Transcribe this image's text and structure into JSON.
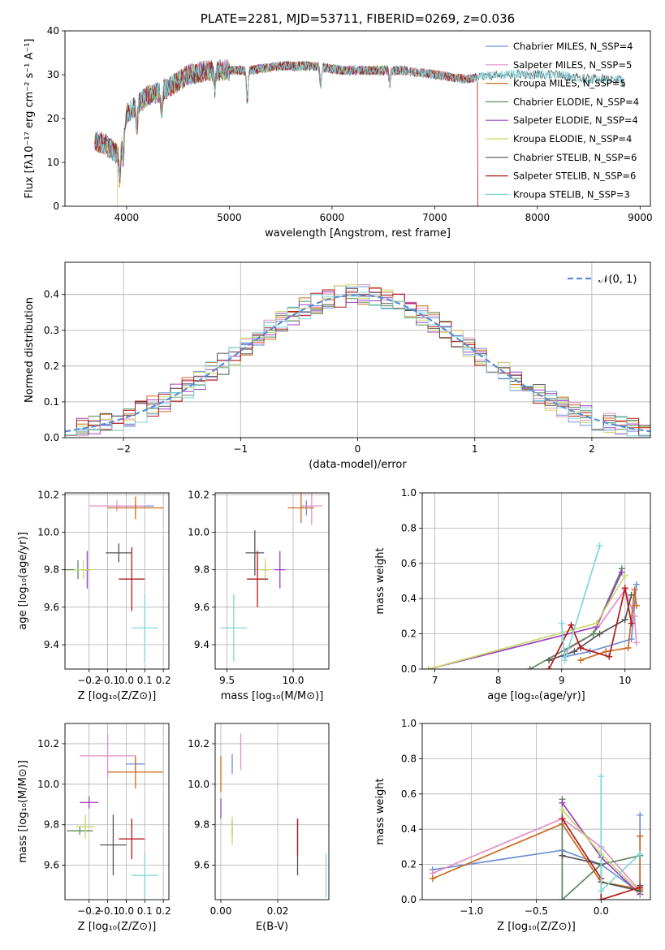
{
  "chart_data": [
    {
      "id": "spectrum",
      "type": "line",
      "title": "PLATE=2281, MJD=53711, FIBERID=0269, z=0.036",
      "xlabel": "wavelength [Angstrom, rest frame]",
      "ylabel": "Flux [fλ10⁻¹⁷ erg cm⁻² s⁻¹ A⁻¹]",
      "xlim": [
        3400,
        9100
      ],
      "ylim": [
        0,
        40
      ],
      "xticks": [
        4000,
        5000,
        6000,
        7000,
        8000,
        9000
      ],
      "yticks": [
        0,
        10,
        20,
        30,
        40
      ],
      "grid": false,
      "legend_position": "top-right",
      "continuum": {
        "x": [
          3690,
          3800,
          3900,
          3950,
          4000,
          4100,
          4200,
          4300,
          4400,
          4600,
          4800,
          5000,
          5200,
          5500,
          5800,
          6100,
          6400,
          6700,
          7000,
          7300,
          7600,
          7900,
          8200,
          8500,
          8800,
          8850
        ],
        "y": [
          15,
          14,
          12,
          15,
          21,
          23,
          25,
          26,
          27,
          30,
          31,
          31,
          31,
          32,
          32,
          31,
          31,
          31,
          30,
          29,
          30,
          30,
          30,
          29,
          29,
          28
        ]
      },
      "dips": [
        [
          3933,
          8
        ],
        [
          3968,
          6
        ],
        [
          4101,
          5
        ],
        [
          4340,
          5
        ],
        [
          4861,
          4
        ],
        [
          5175,
          7
        ],
        [
          5890,
          4
        ],
        [
          6563,
          3
        ]
      ],
      "series": [
        {
          "name": "Chabrier MILES, N_SSP=4",
          "color": "#6d8fd6",
          "xmax": 7400
        },
        {
          "name": "Salpeter MILES, N_SSP=5",
          "color": "#e48fc6",
          "xmax": 7400
        },
        {
          "name": "Kroupa MILES, N_SSP=5",
          "color": "#cc6b1e",
          "xmax": 7400,
          "drop_at": 7420
        },
        {
          "name": "Chabrier ELODIE, N_SSP=4",
          "color": "#5c8a5c",
          "xmax": 6790
        },
        {
          "name": "Salpeter ELODIE, N_SSP=4",
          "color": "#9c3fc0",
          "xmax": 6790
        },
        {
          "name": "Kroupa ELODIE, N_SSP=4",
          "color": "#c8d96a",
          "xmax": 6790,
          "drop_at": 3910
        },
        {
          "name": "Chabrier STELIB, N_SSP=6",
          "color": "#555555",
          "xmax": 8850
        },
        {
          "name": "Salpeter STELIB, N_SSP=6",
          "color": "#b11c1c",
          "xmax": 7400,
          "drop_at": 7420
        },
        {
          "name": "Kroupa STELIB, N_SSP=3",
          "color": "#7fd6dc",
          "xmax": 8850
        }
      ]
    },
    {
      "id": "residuals",
      "type": "step",
      "xlabel": "(data-model)/error",
      "ylabel": "Normed distribution",
      "xlim": [
        -2.5,
        2.5
      ],
      "ylim": [
        0,
        0.49
      ],
      "xticks": [
        -2,
        -1,
        0,
        1,
        2
      ],
      "xticklabels": [
        "−2",
        "−1",
        "0",
        "1",
        "2"
      ],
      "yticks": [
        0.0,
        0.1,
        0.2,
        0.3,
        0.4
      ],
      "grid": true,
      "legend_position": "top-right",
      "gaussian_label": "𝒩(0, 1)",
      "gaussian_color": "#5b8bd6",
      "bin_width": 0.1
    },
    {
      "id": "age-vs-Z",
      "type": "errorbar",
      "xlabel": "Z [log₁₀(Z/Z⊙)]",
      "ylabel": "age  [log₁₀(age/yr)]",
      "xlim": [
        -0.33,
        0.23
      ],
      "ylim": [
        9.27,
        10.21
      ],
      "xticks": [
        -0.2,
        -0.1,
        0.0,
        0.1,
        0.2
      ],
      "xticklabels": [
        "−0.2",
        "−0.1",
        "0.0",
        "0.1",
        "0.2"
      ],
      "yticks": [
        9.4,
        9.6,
        9.8,
        10.0,
        10.2
      ],
      "yticklabels": [
        "9.4",
        "9.6",
        "9.8",
        "10.0",
        "10.2"
      ],
      "grid": true,
      "points": [
        {
          "x": 0.05,
          "xerr": 0.1,
          "y": 10.14,
          "yerr": 0.01,
          "color": "#6d8fd6"
        },
        {
          "x": -0.05,
          "xerr": 0.15,
          "y": 10.14,
          "yerr": 0.03,
          "color": "#e48fc6"
        },
        {
          "x": 0.05,
          "xerr": 0.15,
          "y": 10.13,
          "yerr": 0.06,
          "color": "#cc6b1e"
        },
        {
          "x": -0.26,
          "xerr": 0.07,
          "y": 9.8,
          "yerr": 0.05,
          "color": "#5c8a5c"
        },
        {
          "x": -0.21,
          "xerr": 0.01,
          "y": 9.8,
          "yerr": 0.1,
          "color": "#9c3fc0"
        },
        {
          "x": -0.23,
          "xerr": 0.05,
          "y": 9.8,
          "yerr": 0.05,
          "color": "#c8d96a"
        },
        {
          "x": -0.04,
          "xerr": 0.07,
          "y": 9.89,
          "yerr": 0.05,
          "color": "#555555"
        },
        {
          "x": 0.03,
          "xerr": 0.07,
          "y": 9.75,
          "yerr": 0.17,
          "color": "#b11c1c"
        },
        {
          "x": 0.1,
          "xerr": 0.07,
          "y": 9.49,
          "yerr": 0.18,
          "color": "#7fd6dc"
        }
      ]
    },
    {
      "id": "age-vs-mass",
      "type": "errorbar",
      "xlabel": "mass [log₁₀(M/M⊙)]",
      "xlim": [
        9.41,
        10.27
      ],
      "ylim": [
        9.27,
        10.21
      ],
      "xticks": [
        9.5,
        10.0
      ],
      "xticklabels": [
        "9.5",
        "10.0"
      ],
      "yticks": [
        9.4,
        9.6,
        9.8,
        10.0,
        10.2
      ],
      "yticklabels": [
        "9.4",
        "9.6",
        "9.8",
        "10.0",
        "10.2"
      ],
      "grid": true,
      "points": [
        {
          "x": 10.1,
          "xerr": 0.05,
          "y": 10.13,
          "yerr": 0.04,
          "color": "#6d8fd6"
        },
        {
          "x": 10.14,
          "xerr": 0.08,
          "y": 10.14,
          "yerr": 0.1,
          "color": "#e48fc6"
        },
        {
          "x": 10.06,
          "xerr": 0.1,
          "y": 10.13,
          "yerr": 0.08,
          "color": "#cc6b1e"
        },
        {
          "x": 9.79,
          "xerr": 0.02,
          "y": 9.8,
          "yerr": 0.04,
          "color": "#5c8a5c"
        },
        {
          "x": 9.9,
          "xerr": 0.04,
          "y": 9.8,
          "yerr": 0.1,
          "color": "#9c3fc0"
        },
        {
          "x": 9.79,
          "xerr": 0.04,
          "y": 9.8,
          "yerr": 0.06,
          "color": "#c8d96a"
        },
        {
          "x": 9.71,
          "xerr": 0.07,
          "y": 9.89,
          "yerr": 0.12,
          "color": "#555555"
        },
        {
          "x": 9.73,
          "xerr": 0.08,
          "y": 9.75,
          "yerr": 0.15,
          "color": "#b11c1c"
        },
        {
          "x": 9.55,
          "xerr": 0.1,
          "y": 9.49,
          "yerr": 0.18,
          "color": "#7fd6dc"
        }
      ]
    },
    {
      "id": "massweight-vs-age",
      "type": "line",
      "xlabel": "age  [log₁₀(age/yr)]",
      "ylabel": "mass weight",
      "xlim": [
        6.8,
        10.4
      ],
      "ylim": [
        0,
        1
      ],
      "xticks": [
        7,
        8,
        9,
        10
      ],
      "xticklabels": [
        "7",
        "8",
        "9",
        "10"
      ],
      "yticks": [
        0.0,
        0.2,
        0.4,
        0.6,
        0.8,
        1.0
      ],
      "yticklabels": [
        "0.0",
        "0.2",
        "0.4",
        "0.6",
        "0.8",
        "1.0"
      ],
      "grid": true,
      "series": [
        {
          "color": "#6d8fd6",
          "x": [
            9.05,
            9.45,
            10.1,
            10.18
          ],
          "y": [
            0.07,
            0.1,
            0.17,
            0.48
          ]
        },
        {
          "color": "#e48fc6",
          "x": [
            9.05,
            9.5,
            10.0,
            10.15,
            10.18
          ],
          "y": [
            0.1,
            0.2,
            0.45,
            0.3,
            0.15
          ]
        },
        {
          "color": "#cc6b1e",
          "x": [
            9.3,
            9.7,
            10.05,
            10.15,
            10.18
          ],
          "y": [
            0.05,
            0.1,
            0.12,
            0.45,
            0.36
          ]
        },
        {
          "color": "#5c8a5c",
          "x": [
            8.5,
            9.5,
            9.95
          ],
          "y": [
            0.0,
            0.2,
            0.57
          ]
        },
        {
          "color": "#9c3fc0",
          "x": [
            6.9,
            9.55,
            9.95
          ],
          "y": [
            0.0,
            0.24,
            0.55
          ]
        },
        {
          "color": "#c8d96a",
          "x": [
            6.9,
            9.55,
            10.0
          ],
          "y": [
            0.0,
            0.26,
            0.53
          ]
        },
        {
          "color": "#555555",
          "x": [
            8.8,
            9.2,
            9.6,
            10.0,
            10.1
          ],
          "y": [
            0.05,
            0.1,
            0.2,
            0.28,
            0.42
          ]
        },
        {
          "color": "#b11c1c",
          "x": [
            8.8,
            9.15,
            9.3,
            9.75,
            10.0,
            10.1
          ],
          "y": [
            0.0,
            0.25,
            0.12,
            0.07,
            0.46,
            0.26
          ]
        },
        {
          "color": "#7fd6dc",
          "x": [
            9.0,
            9.05,
            9.6
          ],
          "y": [
            0.26,
            0.05,
            0.7
          ]
        }
      ]
    },
    {
      "id": "mass-vs-Z",
      "type": "errorbar",
      "xlabel": "Z [log₁₀(Z/Z⊙)]",
      "ylabel": "mass [log₁₀(M/M⊙)]",
      "xlim": [
        -0.33,
        0.23
      ],
      "ylim": [
        9.43,
        10.3
      ],
      "xticks": [
        -0.2,
        -0.1,
        0.0,
        0.1,
        0.2
      ],
      "xticklabels": [
        "−0.2",
        "−0.1",
        "0.0",
        "0.1",
        "0.2"
      ],
      "yticks": [
        9.6,
        9.8,
        10.0,
        10.2
      ],
      "yticklabels": [
        "9.6",
        "9.8",
        "10.0",
        "10.2"
      ],
      "grid": true,
      "points": [
        {
          "x": 0.05,
          "xerr": 0.05,
          "y": 10.1,
          "yerr": 0.04,
          "color": "#6d8fd6"
        },
        {
          "x": -0.1,
          "xerr": 0.15,
          "y": 10.14,
          "yerr": 0.11,
          "color": "#e48fc6"
        },
        {
          "x": 0.05,
          "xerr": 0.15,
          "y": 10.06,
          "yerr": 0.08,
          "color": "#cc6b1e"
        },
        {
          "x": -0.25,
          "xerr": 0.07,
          "y": 9.77,
          "yerr": 0.02,
          "color": "#5c8a5c"
        },
        {
          "x": -0.2,
          "xerr": 0.05,
          "y": 9.91,
          "yerr": 0.03,
          "color": "#9c3fc0"
        },
        {
          "x": -0.22,
          "xerr": 0.05,
          "y": 9.79,
          "yerr": 0.06,
          "color": "#c8d96a"
        },
        {
          "x": -0.07,
          "xerr": 0.07,
          "y": 9.7,
          "yerr": 0.15,
          "color": "#555555"
        },
        {
          "x": 0.03,
          "xerr": 0.07,
          "y": 9.73,
          "yerr": 0.1,
          "color": "#b11c1c"
        },
        {
          "x": 0.1,
          "xerr": 0.07,
          "y": 9.55,
          "yerr": 0.11,
          "color": "#7fd6dc"
        }
      ]
    },
    {
      "id": "mass-vs-ebv",
      "type": "errorbar",
      "xlabel": "E(B-V)",
      "xlim": [
        -0.002,
        0.038
      ],
      "ylim": [
        9.43,
        10.3
      ],
      "xticks": [
        0.0,
        0.02
      ],
      "xticklabels": [
        "0.00",
        "0.02"
      ],
      "yticks": [
        9.6,
        9.8,
        10.0,
        10.2
      ],
      "yticklabels": [
        "9.6",
        "9.8",
        "10.0",
        "10.2"
      ],
      "grid": true,
      "points": [
        {
          "x": 0.004,
          "xerr": 0,
          "y": 10.1,
          "yerr": 0.05,
          "color": "#6d8fd6"
        },
        {
          "x": 0.007,
          "xerr": 0,
          "y": 10.16,
          "yerr": 0.09,
          "color": "#e48fc6"
        },
        {
          "x": 0.0,
          "xerr": 0,
          "y": 10.05,
          "yerr": 0.09,
          "color": "#cc6b1e"
        },
        {
          "x": 0.004,
          "xerr": 0,
          "y": 9.78,
          "yerr": 0.04,
          "color": "#5c8a5c"
        },
        {
          "x": 0.0,
          "xerr": 0,
          "y": 9.88,
          "yerr": 0.05,
          "color": "#9c3fc0"
        },
        {
          "x": 0.004,
          "xerr": 0,
          "y": 9.77,
          "yerr": 0.07,
          "color": "#c8d96a"
        },
        {
          "x": 0.027,
          "xerr": 0,
          "y": 9.69,
          "yerr": 0.14,
          "color": "#555555"
        },
        {
          "x": 0.027,
          "xerr": 0,
          "y": 9.74,
          "yerr": 0.09,
          "color": "#b11c1c"
        },
        {
          "x": 0.037,
          "xerr": 0,
          "y": 9.55,
          "yerr": 0.11,
          "color": "#7fd6dc"
        }
      ]
    },
    {
      "id": "massweight-vs-Z",
      "type": "line",
      "xlabel": "Z [log₁₀(Z/Z⊙)]",
      "ylabel": "mass weight",
      "xlim": [
        -1.38,
        0.38
      ],
      "ylim": [
        0,
        1
      ],
      "xticks": [
        -1.0,
        -0.5,
        0.0
      ],
      "xticklabels": [
        "−1.0",
        "−0.5",
        "0.0"
      ],
      "yticks": [
        0.0,
        0.2,
        0.4,
        0.6,
        0.8,
        1.0
      ],
      "yticklabels": [
        "0.0",
        "0.2",
        "0.4",
        "0.6",
        "0.8",
        "1.0"
      ],
      "grid": true,
      "series": [
        {
          "color": "#6d8fd6",
          "x": [
            -1.3,
            -0.3,
            0.0,
            0.3,
            0.3
          ],
          "y": [
            0.17,
            0.28,
            0.2,
            0.04,
            0.48
          ]
        },
        {
          "color": "#e48fc6",
          "x": [
            -1.3,
            -0.3,
            0.0,
            0.3
          ],
          "y": [
            0.15,
            0.46,
            0.3,
            0.05
          ]
        },
        {
          "color": "#cc6b1e",
          "x": [
            -1.3,
            -0.3,
            0.0,
            0.3,
            0.3
          ],
          "y": [
            0.12,
            0.43,
            0.1,
            0.06,
            0.36
          ]
        },
        {
          "color": "#5c8a5c",
          "x": [
            -0.3,
            -0.3,
            0.0,
            0.3
          ],
          "y": [
            0.57,
            0.0,
            0.2,
            0.25
          ]
        },
        {
          "color": "#9c3fc0",
          "x": [
            -0.3,
            0.0,
            0.3
          ],
          "y": [
            0.55,
            0.24,
            0.03
          ]
        },
        {
          "color": "#c8d96a",
          "x": [
            -0.3,
            0.0,
            0.3
          ],
          "y": [
            0.51,
            0.26,
            0.04
          ]
        },
        {
          "color": "#555555",
          "x": [
            -0.3,
            0.0,
            0.0,
            0.3,
            0.3
          ],
          "y": [
            0.25,
            0.2,
            0.1,
            0.05,
            0.08
          ]
        },
        {
          "color": "#b11c1c",
          "x": [
            -0.3,
            0.0,
            0.0,
            0.3
          ],
          "y": [
            0.46,
            0.12,
            0.0,
            0.07
          ]
        },
        {
          "color": "#7fd6dc",
          "x": [
            0.0,
            0.0,
            0.3
          ],
          "y": [
            0.7,
            0.05,
            0.26
          ]
        }
      ]
    }
  ]
}
